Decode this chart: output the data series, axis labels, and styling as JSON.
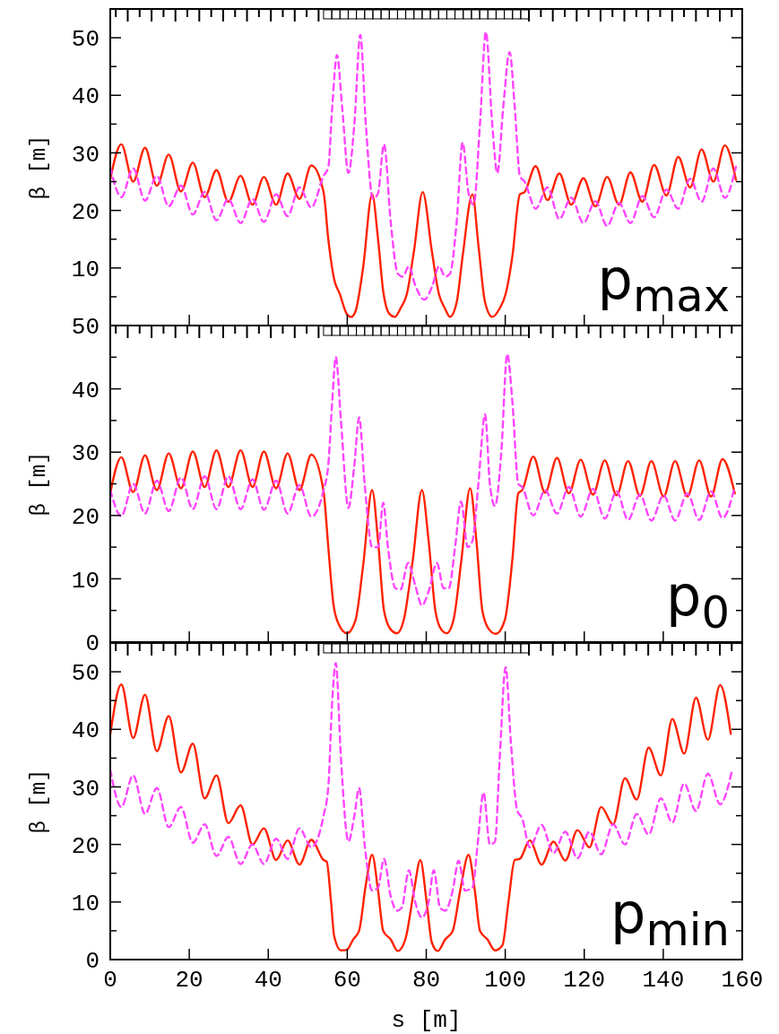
{
  "chart_data": [
    {
      "type": "line",
      "ylabel": "β [m]",
      "annotations": [
        "p$_{max}$"
      ],
      "xlim": [
        0,
        160
      ],
      "xticks": [
        0,
        20,
        40,
        60,
        80,
        100,
        120,
        140,
        160
      ],
      "ylim": [
        0,
        55
      ],
      "yticks": [
        {
          "value": 0,
          "label": null
        },
        {
          "value": 5,
          "label": null
        },
        10,
        {
          "value": 15,
          "label": null
        },
        20,
        {
          "value": 25,
          "label": null
        },
        30,
        {
          "value": 35,
          "label": null
        },
        40,
        {
          "value": 45,
          "label": null
        },
        50
      ],
      "tick_labels": "y",
      "grid": false,
      "series": [
        {
          "color": "#ff2200",
          "line_style": "solid",
          "x": [
            0,
            2.8,
            5.8,
            8.8,
            11.8,
            14.8,
            17.9,
            20.9,
            23.9,
            26.9,
            29.9,
            33,
            36,
            38.9,
            42,
            44.9,
            47.9,
            50.9,
            54,
            55.2,
            56.7,
            58.1,
            59.9,
            61.0,
            62.1,
            64.0,
            66.3,
            67.8,
            69.1,
            70.7,
            72.0,
            73.5,
            75.1,
            76.9,
            79.1,
            81.4,
            83.2,
            84.7,
            86.0,
            87.7,
            89.2,
            91.7,
            93.2,
            94.9,
            96.7,
            98.6,
            100.1,
            101.8,
            103.7,
            104.9,
            107.7,
            110.7,
            113.7,
            116.7,
            119.8,
            122.8,
            125.8,
            128.8,
            131.7,
            134.7,
            137.7,
            140.8,
            143.8,
            146.8,
            149.7,
            152.7,
            155.6,
            158.4
          ],
          "values": [
            25.4,
            31.5,
            25,
            30.9,
            24.3,
            29.7,
            23.3,
            28.3,
            22.3,
            27,
            21.5,
            26,
            21,
            25.8,
            21,
            26.4,
            22,
            27.8,
            23.2,
            15,
            8,
            5.5,
            2,
            1.5,
            2.5,
            10,
            22.8,
            15,
            6,
            2,
            1.5,
            3,
            5.5,
            13,
            23.2,
            13,
            5.5,
            3,
            1.5,
            4,
            12,
            22.8,
            14,
            4,
            1.5,
            3,
            5.5,
            12,
            22.8,
            23.2,
            27.7,
            21.8,
            26.4,
            21,
            25.6,
            20.7,
            25.8,
            21,
            26.6,
            21.5,
            27.9,
            22.6,
            29.3,
            24,
            30.6,
            25,
            31.3,
            25.3
          ]
        },
        {
          "color": "#ff44ff",
          "line_style": "dashed",
          "x": [
            0,
            2.8,
            5.8,
            8.8,
            11.8,
            14.8,
            17.9,
            20.9,
            23.9,
            26.9,
            29.9,
            33,
            36,
            38.9,
            42,
            44.9,
            47.9,
            50.9,
            54,
            55.2,
            56.2,
            57.4,
            58.7,
            60.3,
            61.8,
            63.3,
            64.7,
            66.5,
            67.8,
            69.3,
            71.0,
            72.8,
            74.1,
            75.6,
            77.2,
            79.5,
            81.6,
            83.2,
            84.8,
            86.0,
            87.7,
            89.2,
            90.7,
            92.0,
            93.6,
            95.1,
            96.7,
            98.0,
            99.5,
            101.1,
            102.4,
            103.7,
            104.9,
            107.7,
            110.7,
            113.7,
            116.7,
            119.8,
            122.8,
            125.8,
            128.8,
            131.7,
            134.7,
            137.7,
            140.8,
            143.8,
            146.8,
            149.7,
            152.7,
            155.6,
            158.4
          ],
          "values": [
            27.5,
            22.3,
            27.3,
            21.7,
            26,
            20.7,
            24.3,
            19.3,
            23.2,
            18.3,
            22,
            17.8,
            22,
            18,
            22.8,
            19,
            24,
            20.5,
            26,
            27.5,
            38,
            47,
            38,
            26.5,
            35,
            50.5,
            35,
            22,
            23,
            31.5,
            18,
            9,
            8.5,
            10.3,
            7,
            4.5,
            7,
            10.3,
            8.5,
            9,
            18,
            31.8,
            23,
            21,
            35,
            51,
            35,
            26.5,
            38,
            47.5,
            38,
            26,
            25,
            20.3,
            24,
            18.5,
            22.2,
            17.8,
            21.6,
            17.3,
            21.3,
            17.8,
            22.5,
            18.8,
            23.6,
            20.3,
            25.5,
            21.5,
            27.3,
            22.2,
            27.6
          ]
        }
      ]
    },
    {
      "type": "line",
      "ylabel": "β [m]",
      "annotations": [
        "p$_{0}$"
      ],
      "xlim": [
        0,
        160
      ],
      "xticks": [
        0,
        20,
        40,
        60,
        80,
        100,
        120,
        140,
        160
      ],
      "ylim": [
        0,
        50
      ],
      "yticks": [
        0,
        {
          "value": 5,
          "label": null
        },
        10,
        {
          "value": 15,
          "label": null
        },
        20,
        {
          "value": 25,
          "label": null
        },
        30,
        {
          "value": 35,
          "label": null
        },
        40,
        {
          "value": 45,
          "label": null
        },
        50
      ],
      "tick_labels": "y",
      "grid": false,
      "series": [
        {
          "color": "#ff2200",
          "line_style": "solid",
          "x": [
            0,
            2.8,
            5.8,
            8.8,
            11.8,
            14.8,
            17.9,
            20.9,
            23.9,
            26.9,
            29.9,
            33,
            36,
            38.9,
            42,
            44.9,
            47.9,
            50.9,
            54,
            55.2,
            56.5,
            57.7,
            59.9,
            62.1,
            64.0,
            66.3,
            67.8,
            69.3,
            71.0,
            72.6,
            74.3,
            76.6,
            78.9,
            80.6,
            82.3,
            83.8,
            85.2,
            86.9,
            88.9,
            91.1,
            92.7,
            94.2,
            95.9,
            97.6,
            99.9,
            101.8,
            103.3,
            104.3,
            107.1,
            110.1,
            113.1,
            116.1,
            119.1,
            122.2,
            125.2,
            128.2,
            131.1,
            134.1,
            137.0,
            140.1,
            143.0,
            146.1,
            149.1,
            152.1,
            155.0,
            158.1
          ],
          "values": [
            23.5,
            29.2,
            23.7,
            29.5,
            24,
            29.8,
            24.3,
            30.1,
            24.5,
            30.3,
            24.5,
            30.3,
            24.5,
            30.1,
            24.3,
            29.8,
            24,
            29.6,
            23.8,
            15,
            6,
            3,
            1.4,
            3.5,
            12,
            24,
            16,
            5,
            2,
            1.4,
            3.5,
            13,
            24,
            16,
            5,
            2,
            1.4,
            3.5,
            13,
            24.3,
            16,
            5,
            2,
            1.3,
            3.5,
            13,
            23.5,
            24,
            29.3,
            23.6,
            29.1,
            23.5,
            28.8,
            23.3,
            28.7,
            23.2,
            28.6,
            23.1,
            28.6,
            23,
            28.6,
            23,
            28.7,
            23,
            28.9,
            23.5
          ]
        },
        {
          "color": "#ff44ff",
          "line_style": "dashed",
          "x": [
            0,
            2.8,
            5.8,
            8.8,
            11.8,
            14.8,
            17.9,
            20.9,
            23.9,
            26.9,
            29.9,
            33,
            36,
            38.9,
            42,
            44.9,
            47.9,
            50.9,
            54,
            55.2,
            56.2,
            57.1,
            58.4,
            60.3,
            61.8,
            63.0,
            64.4,
            66.3,
            67.8,
            69.1,
            70.3,
            72.2,
            73.5,
            75.4,
            77.2,
            78.9,
            80.6,
            82.7,
            84.4,
            85.7,
            87.3,
            88.8,
            90.5,
            91.7,
            93.2,
            94.9,
            96.1,
            97.4,
            99.0,
            100.5,
            101.8,
            103.3,
            104.3,
            107.1,
            110.1,
            113.1,
            116.1,
            119.1,
            122.2,
            125.2,
            128.2,
            131.1,
            134.1,
            137.0,
            140.1,
            143.0,
            146.1,
            149.1,
            152.1,
            155.0,
            158.1
          ],
          "values": [
            24,
            19.9,
            25,
            20.3,
            25.5,
            20.7,
            26,
            21,
            26.2,
            21,
            26.2,
            21,
            25.7,
            20.9,
            25.5,
            20.3,
            24.8,
            19.8,
            24,
            28,
            38,
            45,
            35,
            21.2,
            28,
            35.5,
            25,
            15,
            15,
            22,
            15,
            8.5,
            8.3,
            12.5,
            9,
            5.8,
            8,
            12.5,
            8.5,
            8.5,
            15,
            22.2,
            15,
            16,
            25,
            36,
            25,
            21.5,
            30,
            45.5,
            38,
            25,
            24.5,
            20,
            24,
            20.3,
            24.5,
            19.8,
            24.2,
            19.5,
            23.8,
            19.3,
            23.3,
            19.2,
            23.2,
            19.2,
            23.5,
            19.3,
            23.8,
            19.6,
            24.5
          ]
        }
      ]
    },
    {
      "type": "line",
      "xlabel": "s [m]",
      "ylabel": "β [m]",
      "annotations": [
        "p$_{min}$"
      ],
      "xlim": [
        0,
        160
      ],
      "xticks": [
        0,
        20,
        40,
        60,
        80,
        100,
        120,
        140,
        160
      ],
      "ylim": [
        0,
        55
      ],
      "yticks": [
        0,
        {
          "value": 5,
          "label": null
        },
        10,
        {
          "value": 15,
          "label": null
        },
        20,
        {
          "value": 25,
          "label": null
        },
        30,
        {
          "value": 35,
          "label": null
        },
        40,
        {
          "value": 45,
          "label": null
        },
        50
      ],
      "grid": false,
      "series": [
        {
          "color": "#ff2200",
          "line_style": "solid",
          "x": [
            0,
            2.8,
            5.8,
            8.8,
            11.8,
            14.8,
            17.9,
            20.9,
            23.9,
            26.9,
            29.9,
            33,
            36,
            38.9,
            42,
            44.9,
            47.9,
            50.9,
            54,
            54.8,
            55.9,
            56.7,
            58.4,
            59.9,
            61.5,
            63.0,
            64.7,
            66.3,
            67.8,
            69.1,
            71.0,
            72.8,
            74.7,
            76.9,
            78.5,
            80.1,
            81.4,
            82.9,
            84.8,
            86.7,
            88.6,
            90.7,
            92.3,
            93.6,
            95.5,
            97.4,
            99.3,
            100.8,
            102.4,
            103.7,
            106.2,
            109.2,
            112.2,
            115.2,
            118.3,
            121.3,
            124.3,
            127.3,
            130.3,
            133.3,
            136.3,
            139.4,
            142.3,
            145.3,
            148.3,
            151.3,
            154.4,
            157.1
          ],
          "values": [
            39.1,
            47.8,
            38.5,
            46,
            36.2,
            42.3,
            32.5,
            37.5,
            28,
            32,
            23.7,
            26.8,
            20,
            22.8,
            17.3,
            20.7,
            16.5,
            20.8,
            17.3,
            17,
            10,
            4,
            1.6,
            1.7,
            3.5,
            5,
            13,
            18.2,
            12,
            5,
            3.5,
            1.5,
            3.5,
            12,
            17.3,
            10,
            3,
            1.5,
            3.5,
            5,
            12,
            18.2,
            12,
            5,
            3.5,
            1.6,
            2.5,
            10,
            17.3,
            17.5,
            20.7,
            16.5,
            20.5,
            17.2,
            22.5,
            19.5,
            26.5,
            23.5,
            31.5,
            27.8,
            36.8,
            32,
            41.8,
            35.8,
            45.5,
            38.2,
            47.7,
            39.2
          ]
        },
        {
          "color": "#ff44ff",
          "line_style": "dashed",
          "x": [
            0,
            2.8,
            5.8,
            8.8,
            11.8,
            14.8,
            17.9,
            20.9,
            23.9,
            26.9,
            29.9,
            33,
            36,
            38.9,
            42,
            44.9,
            47.9,
            50.9,
            54,
            55.2,
            56.2,
            57.1,
            58.4,
            60.3,
            61.8,
            63.0,
            64.4,
            66.3,
            67.8,
            69.3,
            71.0,
            72.6,
            73.8,
            75.6,
            77.2,
            78.9,
            80.6,
            81.9,
            83.5,
            84.8,
            86.7,
            88.2,
            89.8,
            91.7,
            93.0,
            94.5,
            96.1,
            97.4,
            98.6,
            100.1,
            101.4,
            103.0,
            104.3,
            106.2,
            109.2,
            112.2,
            115.2,
            118.3,
            121.3,
            124.3,
            127.3,
            130.3,
            133.3,
            136.3,
            139.4,
            142.3,
            145.3,
            148.3,
            151.3,
            154.4,
            157.4
          ],
          "values": [
            33,
            26.5,
            32,
            25.3,
            29.8,
            23,
            26.5,
            20.3,
            23.5,
            18,
            21.3,
            16.6,
            20,
            16.6,
            21,
            17.5,
            22.8,
            19.5,
            25,
            30,
            45,
            51.5,
            35,
            20.5,
            25,
            29.8,
            20,
            12,
            12.5,
            17.5,
            11,
            8.5,
            9,
            15.5,
            10,
            7.3,
            10,
            15.5,
            9,
            8.5,
            12,
            17.2,
            12,
            12.5,
            20,
            29,
            20,
            20.5,
            35,
            50.8,
            38,
            26,
            24.5,
            19.5,
            23.4,
            18.5,
            22.2,
            17.6,
            22.2,
            18.3,
            23.5,
            20,
            25.3,
            21.7,
            28,
            23.8,
            30.6,
            25.8,
            32.3,
            27,
            32.8
          ]
        }
      ]
    }
  ]
}
